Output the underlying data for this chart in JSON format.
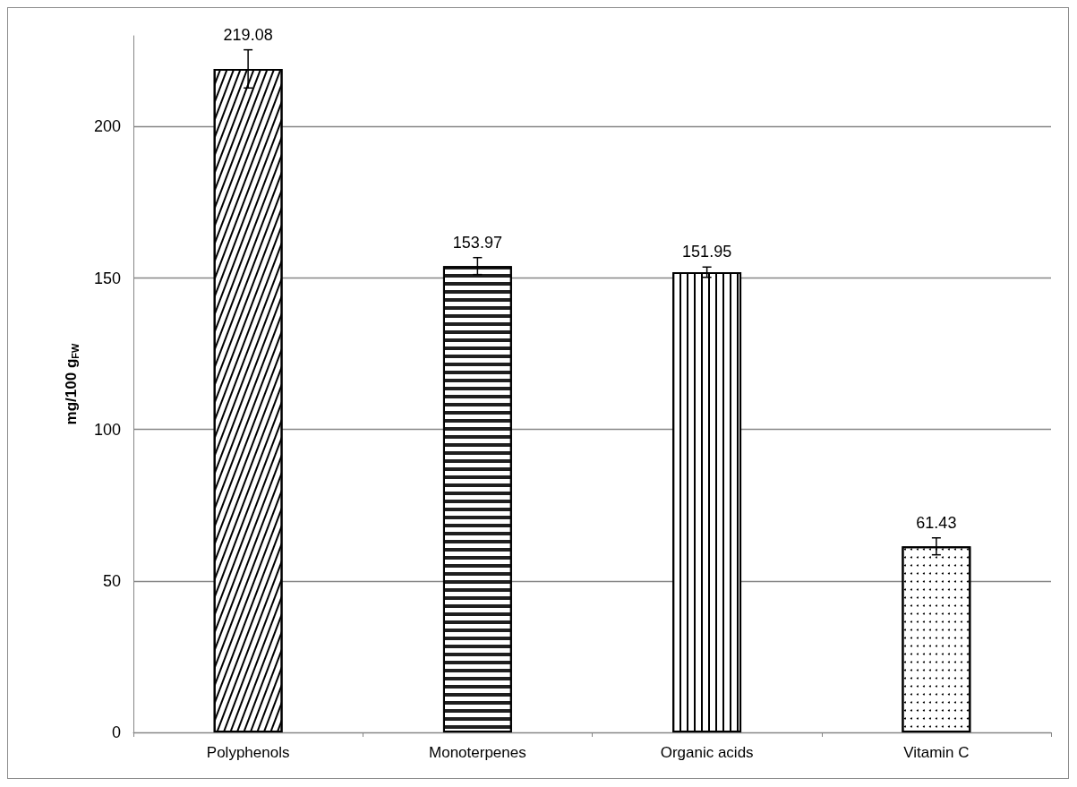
{
  "chart_data": {
    "type": "bar",
    "ylabel": "mg/100 g$_{FW}$",
    "categories": [
      "Polyphenols",
      "Monoterpenes",
      "Organic acids",
      "Vitamin C"
    ],
    "values": [
      219.08,
      153.97,
      151.95,
      61.43
    ],
    "errors": [
      6.3,
      2.8,
      1.7,
      2.8
    ],
    "colors": [
      "#ffffff",
      "#ffffff",
      "#ffffff",
      "#ffffff"
    ],
    "data_labels": true,
    "ylim": [
      0,
      230
    ],
    "yticks": [
      0,
      50,
      100,
      150,
      200
    ],
    "grid": "y"
  }
}
